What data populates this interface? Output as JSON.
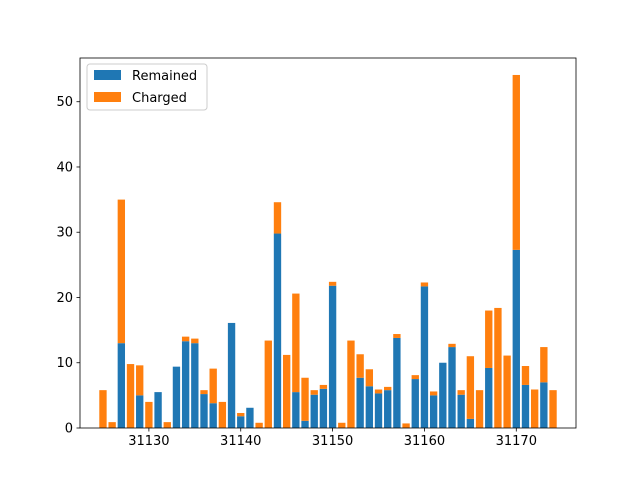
{
  "chart_data": {
    "type": "bar",
    "stacked": true,
    "title": "",
    "xlabel": "",
    "ylabel": "",
    "xlim": [
      31122.5,
      31176.5
    ],
    "ylim": [
      0,
      56.7
    ],
    "xticks": [
      31130,
      31140,
      31150,
      31160,
      31170
    ],
    "yticks": [
      0,
      10,
      20,
      30,
      40,
      50
    ],
    "grid": false,
    "legend": "upper left",
    "x": [
      31125,
      31126,
      31127,
      31128,
      31129,
      31130,
      31131,
      31132,
      31133,
      31134,
      31135,
      31136,
      31137,
      31138,
      31139,
      31140,
      31141,
      31142,
      31143,
      31144,
      31145,
      31146,
      31147,
      31148,
      31149,
      31150,
      31151,
      31152,
      31153,
      31154,
      31155,
      31156,
      31157,
      31158,
      31159,
      31160,
      31161,
      31162,
      31163,
      31164,
      31165,
      31166,
      31167,
      31168,
      31169,
      31170,
      31171,
      31172,
      31173,
      31174
    ],
    "series": [
      {
        "name": "Remained",
        "color": "#1f77b4",
        "values": [
          0,
          0,
          13,
          0,
          5,
          0,
          5.5,
          0,
          9.4,
          13.3,
          13,
          5.2,
          3.8,
          0,
          16.1,
          1.8,
          3.1,
          0,
          0,
          29.8,
          0,
          5.5,
          1.1,
          5.1,
          6,
          21.8,
          0,
          0,
          7.7,
          6.4,
          5.3,
          5.8,
          13.8,
          0,
          7.5,
          21.7,
          5,
          10,
          12.4,
          5.1,
          1.4,
          0,
          9.2,
          0,
          0,
          27.3,
          6.6,
          0,
          7,
          0
        ]
      },
      {
        "name": "Charged",
        "color": "#ff7f0e",
        "values": [
          5.8,
          0.9,
          22,
          9.8,
          4.6,
          4,
          0,
          0.9,
          0,
          0.7,
          0.7,
          0.6,
          5.3,
          4,
          0,
          0.5,
          0,
          0.8,
          13.4,
          4.8,
          11.2,
          15.1,
          6.6,
          0.7,
          0.6,
          0.6,
          0.8,
          13.4,
          3.6,
          2.6,
          0.6,
          0.5,
          0.6,
          0.7,
          0.6,
          0.6,
          0.6,
          0,
          0.5,
          0.7,
          9.6,
          5.8,
          8.8,
          18.4,
          11.1,
          26.8,
          2.9,
          5.9,
          5.4,
          5.8
        ]
      }
    ]
  }
}
